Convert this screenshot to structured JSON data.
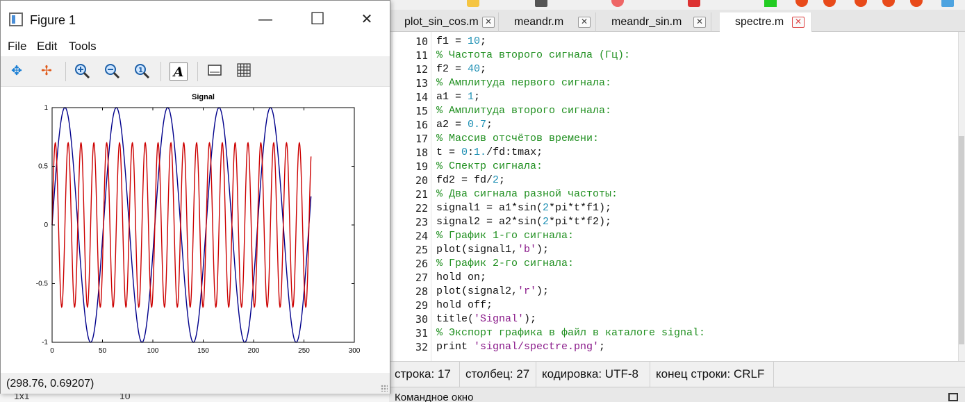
{
  "figure": {
    "title": "Figure 1",
    "menu": [
      "File",
      "Edit",
      "Tools"
    ],
    "toolbar_icons": [
      "pan-icon",
      "rotate-icon",
      "zoom-in-icon",
      "zoom-out-icon",
      "zoom-reset-icon",
      "text-icon",
      "axes-icon",
      "grid-icon"
    ],
    "status": "(298.76, 0.69207)",
    "win_min": "—",
    "win_max": "☐",
    "win_close": "✕"
  },
  "chart_data": {
    "type": "line",
    "title": "Signal",
    "xlabel": "",
    "ylabel": "",
    "xlim": [
      0,
      300
    ],
    "ylim": [
      -1,
      1
    ],
    "xticks": [
      0,
      50,
      100,
      150,
      200,
      250,
      300
    ],
    "yticks": [
      -1,
      -0.5,
      0,
      0.5,
      1
    ],
    "ytick_labels": [
      "-1",
      "-0.5",
      "0",
      "0.5",
      "1"
    ],
    "grid": false,
    "series": [
      {
        "color": "#00008b",
        "amplitude": 1,
        "period": 51,
        "x_end": 257
      },
      {
        "color": "#cc0000",
        "amplitude": 0.7,
        "period": 12.75,
        "x_end": 257
      }
    ]
  },
  "editor": {
    "tabs": [
      {
        "label": "plot_sin_cos.m",
        "active": false
      },
      {
        "label": "meandr.m",
        "active": false
      },
      {
        "label": "meandr_sin.m",
        "active": false
      },
      {
        "label": "spectre.m",
        "active": true
      }
    ],
    "close_glyph": "✕",
    "lines": [
      {
        "n": "10",
        "parts": [
          [
            "",
            "f1 = "
          ],
          [
            "num",
            "10"
          ],
          [
            "",
            ";"
          ]
        ]
      },
      {
        "n": "11",
        "parts": [
          [
            "cm",
            "% Частота второго сигнала (Гц):"
          ]
        ]
      },
      {
        "n": "12",
        "parts": [
          [
            "",
            "f2 = "
          ],
          [
            "num",
            "40"
          ],
          [
            "",
            ";"
          ]
        ]
      },
      {
        "n": "13",
        "parts": [
          [
            "cm",
            "% Амплитуда первого сигнала:"
          ]
        ]
      },
      {
        "n": "14",
        "parts": [
          [
            "",
            "a1 = "
          ],
          [
            "num",
            "1"
          ],
          [
            "",
            ";"
          ]
        ]
      },
      {
        "n": "15",
        "parts": [
          [
            "cm",
            "% Амплитуда второго сигнала:"
          ]
        ]
      },
      {
        "n": "16",
        "parts": [
          [
            "",
            "a2 = "
          ],
          [
            "num",
            "0.7"
          ],
          [
            "",
            ";"
          ]
        ]
      },
      {
        "n": "17",
        "parts": [
          [
            "cm",
            "% Массив отсчётов времени:"
          ]
        ]
      },
      {
        "n": "18",
        "parts": [
          [
            "",
            "t = "
          ],
          [
            "num",
            "0"
          ],
          [
            "",
            ":"
          ],
          [
            "num",
            "1."
          ],
          [
            "",
            "/fd:tmax;"
          ]
        ]
      },
      {
        "n": "19",
        "parts": [
          [
            "cm",
            "% Спектр сигнала:"
          ]
        ]
      },
      {
        "n": "20",
        "parts": [
          [
            "",
            "fd2 = fd/"
          ],
          [
            "num",
            "2"
          ],
          [
            "",
            ";"
          ]
        ]
      },
      {
        "n": "21",
        "parts": [
          [
            "cm",
            "% Два сигнала разной частоты:"
          ]
        ]
      },
      {
        "n": "22",
        "parts": [
          [
            "",
            "signal1 = a1*sin("
          ],
          [
            "num",
            "2"
          ],
          [
            "",
            "*pi*t*f1);"
          ]
        ]
      },
      {
        "n": "23",
        "parts": [
          [
            "",
            "signal2 = a2*sin("
          ],
          [
            "num",
            "2"
          ],
          [
            "",
            "*pi*t*f2);"
          ]
        ]
      },
      {
        "n": "24",
        "parts": [
          [
            "cm",
            "% График 1-го сигнала:"
          ]
        ]
      },
      {
        "n": "25",
        "parts": [
          [
            "",
            "plot(signal1,"
          ],
          [
            "str",
            "'b'"
          ],
          [
            "",
            ");"
          ]
        ]
      },
      {
        "n": "26",
        "parts": [
          [
            "cm",
            "% График 2-го сигнала:"
          ]
        ]
      },
      {
        "n": "27",
        "parts": [
          [
            "",
            "hold on;"
          ]
        ]
      },
      {
        "n": "28",
        "parts": [
          [
            "",
            "plot(signal2,"
          ],
          [
            "str",
            "'r'"
          ],
          [
            "",
            ");"
          ]
        ]
      },
      {
        "n": "29",
        "parts": [
          [
            "",
            "hold off;"
          ]
        ]
      },
      {
        "n": "30",
        "parts": [
          [
            "",
            "title("
          ],
          [
            "str",
            "'Signal'"
          ],
          [
            "",
            ");"
          ]
        ]
      },
      {
        "n": "31",
        "parts": [
          [
            "cm",
            "% Экспорт графика в файл в каталоге signal:"
          ]
        ]
      },
      {
        "n": "32",
        "parts": [
          [
            "",
            "print "
          ],
          [
            "str",
            "'signal/spectre.png'"
          ],
          [
            "",
            ";"
          ]
        ]
      }
    ],
    "status": {
      "row_label": "строка:",
      "row_value": "17",
      "col_label": "столбец:",
      "col_value": "27",
      "enc_label": "кодировка:",
      "enc_value": "UTF-8",
      "eol_label": "конец строки:",
      "eol_value": "CRLF"
    },
    "command_window": "Командное окно"
  },
  "left_strip": {
    "col1": "1x1",
    "col2": "10"
  }
}
